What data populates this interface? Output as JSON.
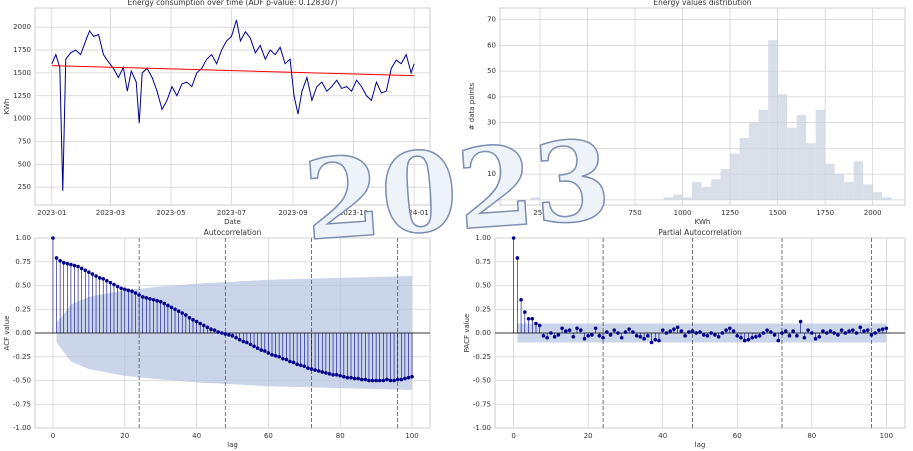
{
  "chart_data": [
    {
      "type": "line",
      "title": "Energy consumption over time (ADF p-value: 0.128307)",
      "xlabel": "Date",
      "ylabel": "KWh",
      "xlim": [
        -17,
        381
      ],
      "ylim": [
        55,
        2210
      ],
      "xticks": [
        {
          "value": 0,
          "label": "2023-01"
        },
        {
          "value": 59,
          "label": "2023-03"
        },
        {
          "value": 120,
          "label": "2023-05"
        },
        {
          "value": 181,
          "label": "2023-07"
        },
        {
          "value": 243,
          "label": "2023-09"
        },
        {
          "value": 304,
          "label": "2023-11"
        },
        {
          "value": 365,
          "label": "2024-01"
        }
      ],
      "yticks": [
        250,
        500,
        750,
        1000,
        1250,
        1500,
        1750,
        2000
      ],
      "grid": true,
      "series": [
        {
          "color": "#00008b",
          "x": [
            0,
            4,
            8,
            11,
            14,
            19,
            24,
            29,
            34,
            38,
            42,
            47,
            52,
            57,
            62,
            67,
            72,
            76,
            80,
            85,
            88,
            91,
            96,
            101,
            106,
            111,
            116,
            121,
            126,
            131,
            136,
            141,
            146,
            151,
            156,
            161,
            166,
            171,
            176,
            181,
            186,
            190,
            195,
            200,
            205,
            210,
            215,
            220,
            225,
            230,
            235,
            240,
            244,
            248,
            252,
            257,
            262,
            267,
            272,
            277,
            282,
            287,
            292,
            297,
            302,
            307,
            312,
            317,
            322,
            327,
            332,
            337,
            342,
            347,
            352,
            357,
            362,
            365
          ],
          "values": [
            1600,
            1700,
            1560,
            210,
            1650,
            1720,
            1750,
            1700,
            1850,
            1960,
            1900,
            1920,
            1700,
            1620,
            1550,
            1450,
            1560,
            1300,
            1520,
            1400,
            950,
            1500,
            1550,
            1450,
            1300,
            1100,
            1200,
            1350,
            1250,
            1380,
            1400,
            1350,
            1500,
            1550,
            1650,
            1700,
            1600,
            1750,
            1850,
            1900,
            2080,
            1850,
            1950,
            1880,
            1720,
            1800,
            1650,
            1750,
            1700,
            1780,
            1600,
            1650,
            1250,
            1050,
            1300,
            1450,
            1200,
            1350,
            1400,
            1300,
            1350,
            1420,
            1330,
            1350,
            1300,
            1420,
            1350,
            1250,
            1200,
            1400,
            1280,
            1300,
            1550,
            1640,
            1600,
            1700,
            1500,
            1600
          ]
        },
        {
          "color": "#ff0000",
          "x": [
            0,
            365
          ],
          "values": [
            1580,
            1470
          ]
        }
      ]
    },
    {
      "type": "histogram",
      "title": "Energy values distribution",
      "xlabel": "KWh",
      "ylabel": "# data points",
      "xlim": [
        40,
        2170
      ],
      "ylim": [
        -2,
        74.5
      ],
      "xticks": [
        250,
        500,
        750,
        1000,
        1250,
        1500,
        1750,
        2000
      ],
      "yticks": [
        0,
        10,
        20,
        30,
        40,
        50,
        60,
        70
      ],
      "grid": true,
      "color": "#c9d2de",
      "bins": [
        200,
        250,
        300,
        350,
        400,
        450,
        500,
        550,
        600,
        650,
        700,
        750,
        800,
        850,
        900,
        950,
        1000,
        1050,
        1100,
        1150,
        1200,
        1250,
        1300,
        1350,
        1400,
        1450,
        1500,
        1550,
        1600,
        1650,
        1700,
        1750,
        1800,
        1850,
        1900,
        1950,
        2000,
        2050,
        2100
      ],
      "counts": [
        1,
        0,
        0,
        0,
        0,
        0,
        0,
        0,
        0,
        0,
        0,
        0,
        0,
        0,
        1,
        2,
        1,
        7,
        5,
        8,
        12,
        18,
        24,
        30,
        35,
        62,
        41,
        28,
        33,
        22,
        35,
        14,
        10,
        7,
        15,
        6,
        3,
        1
      ]
    },
    {
      "type": "stem",
      "title": "Autocorrelation",
      "xlabel": "lag",
      "ylabel": "ACF value",
      "xlim": [
        -5,
        105
      ],
      "ylim": [
        -1,
        1
      ],
      "xticks": [
        0,
        20,
        40,
        60,
        80,
        100
      ],
      "yticks": [
        {
          "value": -1,
          "label": "-1.00"
        },
        {
          "value": -0.75,
          "label": "-0.75"
        },
        {
          "value": -0.5,
          "label": "-0.50"
        },
        {
          "value": -0.25,
          "label": "-0.25"
        },
        {
          "value": 0,
          "label": "0.00"
        },
        {
          "value": 0.25,
          "label": "0.25"
        },
        {
          "value": 0.5,
          "label": "0.50"
        },
        {
          "value": 0.75,
          "label": "0.75"
        },
        {
          "value": 1,
          "label": "1.00"
        }
      ],
      "grid": true,
      "color": "#00008b",
      "band_color": "#b3c3e0",
      "vlines": [
        24,
        48,
        72,
        96
      ],
      "band": {
        "x": [
          1,
          5,
          10,
          20,
          30,
          40,
          50,
          60,
          70,
          80,
          90,
          100
        ],
        "upper": [
          0.1,
          0.3,
          0.38,
          0.45,
          0.49,
          0.52,
          0.54,
          0.56,
          0.57,
          0.58,
          0.59,
          0.6
        ],
        "lower": [
          -0.1,
          -0.3,
          -0.38,
          -0.45,
          -0.49,
          -0.52,
          -0.54,
          -0.56,
          -0.57,
          -0.58,
          -0.59,
          -0.6
        ]
      },
      "x": [
        0,
        1,
        2,
        3,
        4,
        5,
        6,
        7,
        8,
        9,
        10,
        11,
        12,
        13,
        14,
        15,
        16,
        17,
        18,
        19,
        20,
        21,
        22,
        23,
        24,
        25,
        26,
        27,
        28,
        29,
        30,
        31,
        32,
        33,
        34,
        35,
        36,
        37,
        38,
        39,
        40,
        41,
        42,
        43,
        44,
        45,
        46,
        47,
        48,
        49,
        50,
        51,
        52,
        53,
        54,
        55,
        56,
        57,
        58,
        59,
        60,
        61,
        62,
        63,
        64,
        65,
        66,
        67,
        68,
        69,
        70,
        71,
        72,
        73,
        74,
        75,
        76,
        77,
        78,
        79,
        80,
        81,
        82,
        83,
        84,
        85,
        86,
        87,
        88,
        89,
        90,
        91,
        92,
        93,
        94,
        95,
        96,
        97,
        98,
        99,
        100
      ],
      "values": [
        1,
        0.79,
        0.76,
        0.74,
        0.73,
        0.72,
        0.71,
        0.7,
        0.68,
        0.66,
        0.64,
        0.62,
        0.6,
        0.58,
        0.57,
        0.55,
        0.53,
        0.51,
        0.49,
        0.47,
        0.46,
        0.45,
        0.44,
        0.42,
        0.4,
        0.38,
        0.37,
        0.36,
        0.35,
        0.34,
        0.33,
        0.31,
        0.29,
        0.27,
        0.25,
        0.23,
        0.21,
        0.19,
        0.16,
        0.14,
        0.12,
        0.1,
        0.08,
        0.06,
        0.04,
        0.03,
        0.01,
        0,
        -0.01,
        -0.02,
        -0.03,
        -0.05,
        -0.07,
        -0.09,
        -0.1,
        -0.12,
        -0.14,
        -0.16,
        -0.18,
        -0.19,
        -0.21,
        -0.23,
        -0.24,
        -0.25,
        -0.27,
        -0.28,
        -0.3,
        -0.31,
        -0.33,
        -0.34,
        -0.35,
        -0.37,
        -0.38,
        -0.39,
        -0.4,
        -0.41,
        -0.42,
        -0.43,
        -0.44,
        -0.44,
        -0.45,
        -0.46,
        -0.47,
        -0.47,
        -0.48,
        -0.48,
        -0.49,
        -0.49,
        -0.5,
        -0.5,
        -0.5,
        -0.5,
        -0.5,
        -0.49,
        -0.5,
        -0.5,
        -0.49,
        -0.49,
        -0.48,
        -0.47,
        -0.46
      ]
    },
    {
      "type": "stem",
      "title": "Partial Autocorrelation",
      "xlabel": "lag",
      "ylabel": "PACF value",
      "xlim": [
        -5,
        105
      ],
      "ylim": [
        -1,
        1
      ],
      "xticks": [
        0,
        20,
        40,
        60,
        80,
        100
      ],
      "yticks": [
        {
          "value": -1,
          "label": "-1.00"
        },
        {
          "value": -0.75,
          "label": "-0.75"
        },
        {
          "value": -0.5,
          "label": "-0.50"
        },
        {
          "value": -0.25,
          "label": "-0.25"
        },
        {
          "value": 0,
          "label": "0.00"
        },
        {
          "value": 0.25,
          "label": "0.25"
        },
        {
          "value": 0.5,
          "label": "0.50"
        },
        {
          "value": 0.75,
          "label": "0.75"
        },
        {
          "value": 1,
          "label": "1.00"
        }
      ],
      "grid": true,
      "color": "#00008b",
      "band_color": "#b3c3e0",
      "vlines": [
        24,
        48,
        72,
        96
      ],
      "band": {
        "x": [
          1,
          100
        ],
        "upper": [
          0.1,
          0.1
        ],
        "lower": [
          -0.1,
          -0.1
        ]
      },
      "x": [
        0,
        1,
        2,
        3,
        4,
        5,
        6,
        7,
        8,
        9,
        10,
        11,
        12,
        13,
        14,
        15,
        16,
        17,
        18,
        19,
        20,
        21,
        22,
        23,
        24,
        25,
        26,
        27,
        28,
        29,
        30,
        31,
        32,
        33,
        34,
        35,
        36,
        37,
        38,
        39,
        40,
        41,
        42,
        43,
        44,
        45,
        46,
        47,
        48,
        49,
        50,
        51,
        52,
        53,
        54,
        55,
        56,
        57,
        58,
        59,
        60,
        61,
        62,
        63,
        64,
        65,
        66,
        67,
        68,
        69,
        70,
        71,
        72,
        73,
        74,
        75,
        76,
        77,
        78,
        79,
        80,
        81,
        82,
        83,
        84,
        85,
        86,
        87,
        88,
        89,
        90,
        91,
        92,
        93,
        94,
        95,
        96,
        97,
        98,
        99,
        100
      ],
      "values": [
        1,
        0.79,
        0.35,
        0.22,
        0.15,
        0.15,
        0.1,
        0.08,
        -0.03,
        -0.05,
        0,
        -0.04,
        -0.02,
        0.05,
        0.02,
        0.03,
        -0.04,
        0.05,
        0.03,
        -0.06,
        -0.03,
        -0.02,
        0.05,
        -0.03,
        -0.05,
        0.01,
        -0.02,
        0.03,
        0,
        -0.05,
        0.01,
        0.04,
        0.01,
        -0.03,
        -0.04,
        -0.06,
        -0.03,
        -0.1,
        -0.07,
        -0.08,
        0.03,
        0,
        0.02,
        0.04,
        0.06,
        0.02,
        -0.03,
        0.01,
        0.02,
        0,
        0.01,
        -0.02,
        -0.03,
        0,
        -0.02,
        -0.04,
        0,
        0.03,
        0.05,
        0.02,
        -0.03,
        -0.05,
        -0.08,
        -0.07,
        -0.05,
        -0.04,
        -0.03,
        0,
        0.03,
        0.01,
        -0.02,
        -0.08,
        0,
        0.02,
        -0.03,
        0.02,
        -0.03,
        0.12,
        -0.05,
        0.03,
        0,
        -0.06,
        -0.04,
        0.02,
        0,
        0.02,
        0,
        -0.02,
        0.03,
        0,
        0.02,
        0.03,
        0,
        0.06,
        0.02,
        0.03,
        -0.02,
        0,
        0.03,
        0.04,
        0.05
      ]
    }
  ],
  "watermark": "2023"
}
